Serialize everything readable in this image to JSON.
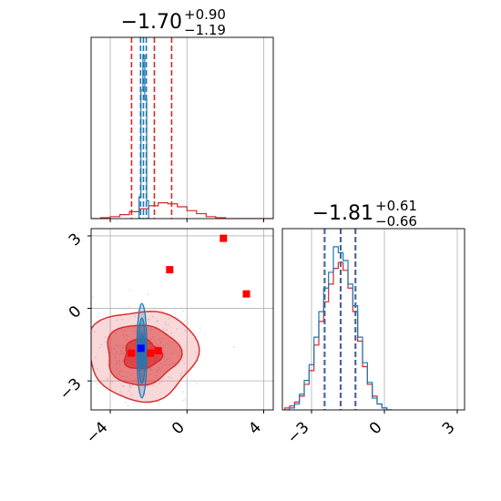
{
  "chart_data": [
    {
      "type": "histogram",
      "panel": "param-1-marginal",
      "title": {
        "median": "−1.70",
        "plus": "+0.90",
        "minus": "−1.19"
      },
      "x_range": [
        -5.0,
        4.5
      ],
      "grid": true,
      "series": [
        {
          "name": "",
          "color": "#d62728",
          "bin_edges": [
            -5.0,
            -4.5,
            -4.0,
            -3.5,
            -3.0,
            -2.5,
            -2.0,
            -1.5,
            -1.0,
            -0.5,
            0.0,
            0.5,
            1.0,
            1.5,
            2.0,
            2.5,
            3.0,
            3.5,
            4.0,
            4.5
          ],
          "counts": [
            0,
            1,
            2,
            4,
            7,
            10,
            13,
            16,
            15,
            12,
            8,
            5,
            2,
            1,
            0,
            0,
            0,
            0,
            0
          ]
        },
        {
          "name": "",
          "color": "#1f77b4",
          "bin_edges": [
            -2.6,
            -2.5,
            -2.4,
            -2.3,
            -2.2,
            -2.1,
            -2.0,
            -1.9
          ],
          "counts": [
            0,
            22,
            130,
            165,
            120,
            18,
            0
          ]
        }
      ],
      "quantile_lines": [
        {
          "color": "#d62728",
          "values": [
            -2.89,
            -1.7,
            -0.8
          ]
        },
        {
          "color": "#1f77b4",
          "values": [
            -2.42,
            -2.27,
            -2.12
          ]
        }
      ]
    },
    {
      "type": "scatter",
      "panel": "joint-2d",
      "x_range": [
        -5.0,
        4.5
      ],
      "y_range": [
        -4.2,
        3.3
      ],
      "grid": true,
      "red_contour_levels_sigma": [
        1,
        2,
        3
      ],
      "red_center": [
        -2.35,
        -1.9
      ],
      "red_spread": [
        0.95,
        0.62
      ],
      "blue_center": [
        -2.35,
        -1.75
      ],
      "blue_spread": [
        0.1,
        0.75
      ],
      "markers": [
        {
          "color": "#ff0000",
          "points": [
            [
              -2.9,
              -1.85
            ],
            [
              -1.9,
              -1.85
            ],
            [
              -1.5,
              -1.75
            ],
            [
              -0.9,
              1.6
            ],
            [
              1.9,
              2.9
            ],
            [
              3.1,
              0.6
            ]
          ]
        },
        {
          "color": "#0000ff",
          "points": [
            [
              -2.4,
              -1.65
            ]
          ]
        }
      ]
    },
    {
      "type": "histogram",
      "panel": "param-2-marginal",
      "title": {
        "median": "−1.81",
        "plus": "+0.61",
        "minus": "−0.66"
      },
      "x_range": [
        -4.2,
        3.3
      ],
      "grid": true,
      "series": [
        {
          "name": "",
          "color": "#d62728",
          "bin_edges": [
            -4.1,
            -3.9,
            -3.7,
            -3.5,
            -3.3,
            -3.1,
            -2.9,
            -2.7,
            -2.5,
            -2.3,
            -2.1,
            -1.9,
            -1.7,
            -1.5,
            -1.3,
            -1.1,
            -0.9,
            -0.7,
            -0.5,
            -0.3,
            -0.1,
            0.1,
            0.3
          ],
          "counts": [
            1,
            2,
            4,
            7,
            13,
            20,
            33,
            45,
            55,
            64,
            72,
            75,
            71,
            62,
            50,
            35,
            22,
            13,
            7,
            3,
            1,
            0
          ]
        },
        {
          "name": "",
          "color": "#1f77b4",
          "bin_edges": [
            -4.1,
            -3.9,
            -3.7,
            -3.5,
            -3.3,
            -3.1,
            -2.9,
            -2.7,
            -2.5,
            -2.3,
            -2.1,
            -1.9,
            -1.7,
            -1.5,
            -1.3,
            -1.1,
            -0.9,
            -0.7,
            -0.5,
            -0.3,
            -0.1,
            0.1,
            0.3
          ],
          "counts": [
            0,
            1,
            3,
            8,
            15,
            23,
            37,
            50,
            62,
            70,
            83,
            80,
            76,
            64,
            53,
            37,
            24,
            14,
            6,
            3,
            1,
            0
          ]
        }
      ],
      "quantile_lines": [
        {
          "color": "#d62728",
          "values": [
            -2.47,
            -1.81,
            -1.2
          ]
        },
        {
          "color": "#1f77b4",
          "values": [
            -2.45,
            -1.79,
            -1.18
          ]
        }
      ]
    }
  ],
  "axes": {
    "x_bottom_left_ticks": [
      {
        "value": -4,
        "label": "−4"
      },
      {
        "value": 0,
        "label": "0"
      },
      {
        "value": 4,
        "label": "4"
      }
    ],
    "y_left_ticks": [
      {
        "value": 3,
        "label": "3"
      },
      {
        "value": 0,
        "label": "0"
      },
      {
        "value": -3,
        "label": "−3"
      }
    ],
    "x_bottom_right_ticks": [
      {
        "value": -3,
        "label": "−3"
      },
      {
        "value": 0,
        "label": "0"
      },
      {
        "value": 3,
        "label": "3"
      }
    ]
  }
}
